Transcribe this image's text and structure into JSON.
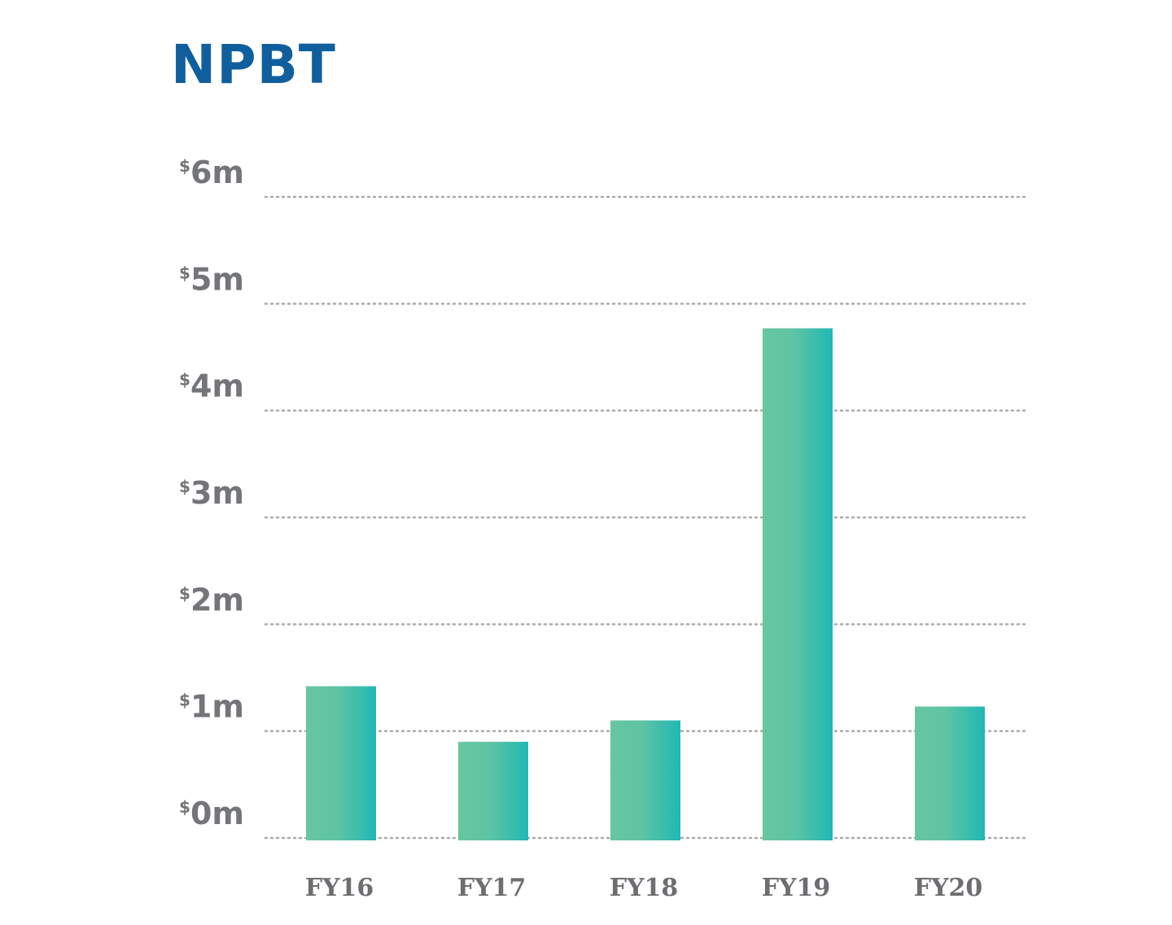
{
  "chart_data": {
    "type": "bar",
    "title": "NPBT",
    "categories": [
      "FY16",
      "FY17",
      "FY18",
      "FY19",
      "FY20"
    ],
    "values": [
      1.42,
      0.9,
      1.1,
      4.77,
      1.23
    ],
    "ylim": [
      0,
      6
    ],
    "y_ticks": [
      {
        "value": 0,
        "currency": "$",
        "text": "0m"
      },
      {
        "value": 1,
        "currency": "$",
        "text": "1m"
      },
      {
        "value": 2,
        "currency": "$",
        "text": "2m"
      },
      {
        "value": 3,
        "currency": "$",
        "text": "3m"
      },
      {
        "value": 4,
        "currency": "$",
        "text": "4m"
      },
      {
        "value": 5,
        "currency": "$",
        "text": "5m"
      },
      {
        "value": 6,
        "currency": "$",
        "text": "6m"
      }
    ],
    "xlabel": "",
    "ylabel": "",
    "grid": "horizontal dotted",
    "legend": "none",
    "colors": {
      "title": "#0f5f9e",
      "bar_gradient_start": "#68c6a0",
      "bar_gradient_end": "#1fb8b4",
      "tick_labels": "#737578",
      "gridline": "#a9abae"
    }
  }
}
